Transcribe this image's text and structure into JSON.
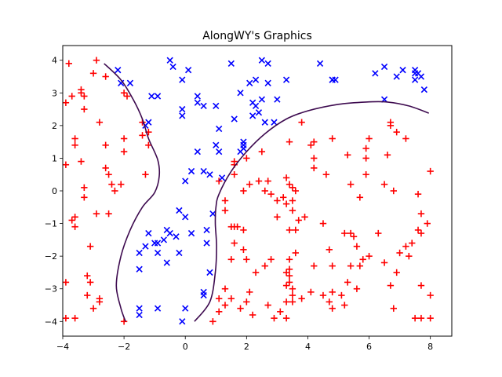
{
  "chart_data": {
    "type": "scatter",
    "title": "AlongWY's Graphics",
    "xlabel": "",
    "ylabel": "",
    "xlim": [
      -4,
      8.7
    ],
    "ylim": [
      -4.45,
      4.45
    ],
    "xticks": [
      -4,
      -2,
      0,
      2,
      4,
      6,
      8
    ],
    "yticks": [
      -4,
      -3,
      -2,
      -1,
      0,
      1,
      2,
      3,
      4
    ],
    "xtick_labels": [
      "−4",
      "−2",
      "0",
      "2",
      "4",
      "6",
      "8"
    ],
    "ytick_labels": [
      "−4",
      "−3",
      "−2",
      "−1",
      "0",
      "1",
      "2",
      "3",
      "4"
    ],
    "grid": false,
    "legend": "none",
    "colors": {
      "positive": "#ff0000",
      "negative": "#0000ff",
      "boundary": "#3d0a4f"
    },
    "series": [
      {
        "label": "positive (+)",
        "marker": "plus",
        "color": "#ff0000",
        "points": [
          [
            -3.8,
            3.9
          ],
          [
            -2.9,
            4.0
          ],
          [
            -3.9,
            2.7
          ],
          [
            -3.7,
            2.9
          ],
          [
            -3.4,
            3.1
          ],
          [
            -3.4,
            3.0
          ],
          [
            -3.3,
            2.5
          ],
          [
            -3.0,
            3.6
          ],
          [
            -3.3,
            2.9
          ],
          [
            -2.8,
            2.1
          ],
          [
            -2.6,
            3.5
          ],
          [
            -2.0,
            3.0
          ],
          [
            -1.9,
            2.9
          ],
          [
            -1.4,
            2.1
          ],
          [
            -1.2,
            1.8
          ],
          [
            -1.4,
            1.7
          ],
          [
            -1.2,
            1.4
          ],
          [
            -2.0,
            1.6
          ],
          [
            -2.0,
            1.2
          ],
          [
            -2.6,
            1.4
          ],
          [
            -3.6,
            1.6
          ],
          [
            -3.6,
            1.4
          ],
          [
            -3.9,
            0.8
          ],
          [
            -3.4,
            0.9
          ],
          [
            -2.6,
            0.7
          ],
          [
            -2.5,
            0.5
          ],
          [
            -2.4,
            0.2
          ],
          [
            -2.3,
            0.0
          ],
          [
            -2.1,
            0.2
          ],
          [
            -3.3,
            0.1
          ],
          [
            -3.3,
            -0.2
          ],
          [
            -3.6,
            -0.8
          ],
          [
            -3.7,
            -0.9
          ],
          [
            -3.6,
            -1.1
          ],
          [
            -2.9,
            -0.7
          ],
          [
            -2.5,
            -0.7
          ],
          [
            -1.3,
            0.5
          ],
          [
            -3.1,
            -1.7
          ],
          [
            -3.2,
            -2.6
          ],
          [
            -3.1,
            -2.8
          ],
          [
            -3.2,
            -3.2
          ],
          [
            -3.0,
            -3.6
          ],
          [
            -2.8,
            -3.3
          ],
          [
            -2.8,
            -3.4
          ],
          [
            -2.0,
            -4.0
          ],
          [
            -3.6,
            -3.9
          ],
          [
            -3.9,
            -2.8
          ],
          [
            -3.9,
            -3.9
          ],
          [
            1.1,
            0.3
          ],
          [
            1.3,
            -0.3
          ],
          [
            1.3,
            -0.6
          ],
          [
            1.5,
            -1.1
          ],
          [
            1.6,
            -1.1
          ],
          [
            1.7,
            -1.1
          ],
          [
            1.9,
            -1.2
          ],
          [
            1.9,
            -1.8
          ],
          [
            1.6,
            -1.6
          ],
          [
            1.5,
            -2.1
          ],
          [
            2.0,
            -2.1
          ],
          [
            2.3,
            -2.5
          ],
          [
            2.6,
            -2.3
          ],
          [
            2.8,
            -2.1
          ],
          [
            2.1,
            -3.1
          ],
          [
            2.0,
            -3.4
          ],
          [
            1.8,
            -3.6
          ],
          [
            1.5,
            -3.3
          ],
          [
            1.3,
            -3.0
          ],
          [
            1.3,
            -3.5
          ],
          [
            1.1,
            -3.7
          ],
          [
            1.1,
            -3.3
          ],
          [
            2.2,
            -3.8
          ],
          [
            0.9,
            -4.0
          ],
          [
            2.7,
            -3.5
          ],
          [
            2.9,
            -3.9
          ],
          [
            3.1,
            -3.7
          ],
          [
            3.3,
            -3.9
          ],
          [
            3.3,
            -3.4
          ],
          [
            3.5,
            -3.4
          ],
          [
            3.3,
            -2.9
          ],
          [
            3.4,
            -2.8
          ],
          [
            3.4,
            -2.6
          ],
          [
            3.4,
            -2.4
          ],
          [
            3.3,
            -2.5
          ],
          [
            3.5,
            -3.0
          ],
          [
            3.5,
            -3.2
          ],
          [
            3.4,
            -2.1
          ],
          [
            3.6,
            -1.9
          ],
          [
            3.4,
            -1.2
          ],
          [
            3.6,
            -1.2
          ],
          [
            3.7,
            -0.9
          ],
          [
            3.9,
            -0.8
          ],
          [
            3.5,
            -0.6
          ],
          [
            3.3,
            -0.4
          ],
          [
            3.2,
            -0.2
          ],
          [
            3.0,
            -0.3
          ],
          [
            3.0,
            -0.8
          ],
          [
            2.8,
            -0.1
          ],
          [
            2.6,
            0.0
          ],
          [
            2.7,
            0.3
          ],
          [
            2.4,
            0.3
          ],
          [
            2.1,
            0.2
          ],
          [
            1.9,
            0.0
          ],
          [
            1.6,
            0.5
          ],
          [
            1.6,
            0.8
          ],
          [
            1.6,
            0.9
          ],
          [
            2.0,
            1.0
          ],
          [
            2.5,
            1.2
          ],
          [
            3.4,
            1.5
          ],
          [
            3.3,
            0.4
          ],
          [
            3.4,
            0.2
          ],
          [
            3.5,
            0.1
          ],
          [
            3.6,
            0.0
          ],
          [
            3.5,
            -0.3
          ],
          [
            3.8,
            2.1
          ],
          [
            4.2,
            1.5
          ],
          [
            4.1,
            1.4
          ],
          [
            4.2,
            1.0
          ],
          [
            4.2,
            0.7
          ],
          [
            4.8,
            1.6
          ],
          [
            4.6,
            0.5
          ],
          [
            5.3,
            1.1
          ],
          [
            5.9,
            1.3
          ],
          [
            5.9,
            1.0
          ],
          [
            6.0,
            1.6
          ],
          [
            6.6,
            1.1
          ],
          [
            6.7,
            2.0
          ],
          [
            6.7,
            2.1
          ],
          [
            6.9,
            1.8
          ],
          [
            7.2,
            1.6
          ],
          [
            5.9,
            0.5
          ],
          [
            5.4,
            0.2
          ],
          [
            5.7,
            -0.2
          ],
          [
            6.5,
            0.2
          ],
          [
            6.8,
            0.0
          ],
          [
            7.6,
            -0.1
          ],
          [
            8.0,
            0.6
          ],
          [
            7.7,
            -0.7
          ],
          [
            7.6,
            -1.2
          ],
          [
            7.7,
            -1.3
          ],
          [
            7.4,
            -1.6
          ],
          [
            7.2,
            -1.7
          ],
          [
            7.0,
            -1.9
          ],
          [
            7.3,
            -2.0
          ],
          [
            6.9,
            -2.5
          ],
          [
            6.5,
            -2.2
          ],
          [
            6.3,
            -1.3
          ],
          [
            6.7,
            -2.9
          ],
          [
            6.8,
            -3.6
          ],
          [
            7.5,
            -3.9
          ],
          [
            7.7,
            -3.9
          ],
          [
            8.0,
            -3.9
          ],
          [
            8.0,
            -3.2
          ],
          [
            7.7,
            -2.9
          ],
          [
            7.9,
            -1.0
          ],
          [
            5.2,
            -1.3
          ],
          [
            5.4,
            -1.3
          ],
          [
            5.5,
            -1.4
          ],
          [
            5.6,
            -1.7
          ],
          [
            5.4,
            -2.3
          ],
          [
            5.8,
            -2.1
          ],
          [
            5.7,
            -2.3
          ],
          [
            6.0,
            -2.0
          ],
          [
            5.3,
            -2.8
          ],
          [
            5.6,
            -3.0
          ],
          [
            5.2,
            -3.5
          ],
          [
            4.7,
            -3.4
          ],
          [
            4.8,
            -3.1
          ],
          [
            4.8,
            -3.6
          ],
          [
            5.1,
            -3.2
          ],
          [
            4.5,
            -3.2
          ],
          [
            4.2,
            -2.3
          ],
          [
            4.8,
            -2.3
          ],
          [
            4.7,
            -1.8
          ],
          [
            4.5,
            -1.0
          ],
          [
            4.1,
            -3.1
          ],
          [
            3.8,
            -3.3
          ]
        ]
      },
      {
        "label": "negative (x)",
        "marker": "x",
        "color": "#0000ff",
        "points": [
          [
            -2.2,
            3.7
          ],
          [
            -2.1,
            3.3
          ],
          [
            -1.8,
            3.3
          ],
          [
            -1.1,
            2.9
          ],
          [
            -0.9,
            2.9
          ],
          [
            -1.2,
            2.1
          ],
          [
            -1.3,
            2.0
          ],
          [
            -0.5,
            4.0
          ],
          [
            -0.4,
            3.8
          ],
          [
            -0.1,
            3.4
          ],
          [
            0.1,
            3.7
          ],
          [
            0.4,
            2.9
          ],
          [
            0.6,
            2.6
          ],
          [
            0.4,
            2.7
          ],
          [
            -0.1,
            2.5
          ],
          [
            -0.1,
            2.3
          ],
          [
            1.0,
            2.6
          ],
          [
            1.5,
            3.9
          ],
          [
            1.8,
            3.0
          ],
          [
            2.1,
            3.3
          ],
          [
            2.3,
            3.4
          ],
          [
            2.5,
            4.0
          ],
          [
            2.7,
            3.9
          ],
          [
            2.7,
            3.3
          ],
          [
            3.3,
            3.4
          ],
          [
            2.2,
            2.7
          ],
          [
            2.5,
            2.8
          ],
          [
            2.3,
            2.6
          ],
          [
            2.2,
            2.3
          ],
          [
            2.4,
            2.4
          ],
          [
            1.6,
            2.2
          ],
          [
            1.1,
            1.9
          ],
          [
            3.0,
            2.8
          ],
          [
            0.4,
            1.2
          ],
          [
            1.0,
            1.4
          ],
          [
            1.1,
            1.2
          ],
          [
            1.9,
            1.4
          ],
          [
            1.9,
            1.3
          ],
          [
            1.9,
            1.5
          ],
          [
            1.8,
            1.2
          ],
          [
            2.6,
            2.1
          ],
          [
            2.9,
            2.1
          ],
          [
            1.2,
            0.4
          ],
          [
            0.6,
            0.6
          ],
          [
            0.2,
            0.6
          ],
          [
            0.8,
            0.5
          ],
          [
            0.0,
            0.3
          ],
          [
            0.9,
            -0.7
          ],
          [
            -0.2,
            -0.6
          ],
          [
            0.0,
            -0.8
          ],
          [
            -1.2,
            -1.3
          ],
          [
            -1.3,
            -1.7
          ],
          [
            -1.0,
            -1.6
          ],
          [
            -0.9,
            -1.6
          ],
          [
            -0.6,
            -1.2
          ],
          [
            -0.5,
            -1.3
          ],
          [
            -0.7,
            -1.5
          ],
          [
            -0.3,
            -1.4
          ],
          [
            0.2,
            -1.3
          ],
          [
            0.7,
            -1.2
          ],
          [
            0.7,
            -1.6
          ],
          [
            -0.9,
            -1.9
          ],
          [
            -0.6,
            -2.2
          ],
          [
            -0.2,
            -1.9
          ],
          [
            -1.5,
            -1.9
          ],
          [
            -1.5,
            -2.4
          ],
          [
            0.8,
            -2.5
          ],
          [
            0.6,
            -3.1
          ],
          [
            0.6,
            -3.2
          ],
          [
            -1.5,
            -3.6
          ],
          [
            -1.5,
            -3.8
          ],
          [
            -0.9,
            -3.6
          ],
          [
            0.0,
            -3.6
          ],
          [
            -0.1,
            -4.0
          ],
          [
            4.4,
            3.9
          ],
          [
            4.8,
            3.4
          ],
          [
            4.8,
            3.4
          ],
          [
            4.9,
            3.4
          ],
          [
            6.2,
            3.6
          ],
          [
            6.5,
            3.8
          ],
          [
            6.9,
            3.5
          ],
          [
            7.1,
            3.7
          ],
          [
            7.5,
            3.7
          ],
          [
            7.5,
            3.6
          ],
          [
            7.6,
            3.6
          ],
          [
            7.5,
            3.4
          ],
          [
            7.7,
            3.5
          ],
          [
            7.8,
            3.1
          ],
          [
            6.5,
            2.8
          ]
        ]
      }
    ],
    "boundary": [
      {
        "label": "decision boundary (left)",
        "points": [
          [
            -2.65,
            3.9
          ],
          [
            -2.1,
            3.4
          ],
          [
            -1.7,
            2.8
          ],
          [
            -1.4,
            2.2
          ],
          [
            -1.2,
            1.6
          ],
          [
            -0.9,
            0.95
          ],
          [
            -0.85,
            0.45
          ],
          [
            -1.0,
            -0.05
          ],
          [
            -1.4,
            -0.5
          ],
          [
            -1.8,
            -1.2
          ],
          [
            -2.1,
            -2.0
          ],
          [
            -2.25,
            -2.9
          ],
          [
            -2.1,
            -3.6
          ],
          [
            -1.95,
            -4.0
          ]
        ]
      },
      {
        "label": "decision boundary (right)",
        "points": [
          [
            0.3,
            -4.0
          ],
          [
            0.8,
            -3.4
          ],
          [
            0.98,
            -2.5
          ],
          [
            1.02,
            -1.7
          ],
          [
            0.98,
            -1.0
          ],
          [
            1.0,
            -0.5
          ],
          [
            1.1,
            -0.1
          ],
          [
            1.5,
            0.6
          ],
          [
            2.0,
            1.2
          ],
          [
            2.6,
            1.75
          ],
          [
            3.3,
            2.2
          ],
          [
            4.0,
            2.45
          ],
          [
            5.0,
            2.65
          ],
          [
            5.9,
            2.72
          ],
          [
            6.6,
            2.72
          ],
          [
            7.3,
            2.6
          ],
          [
            7.95,
            2.38
          ]
        ]
      }
    ]
  }
}
